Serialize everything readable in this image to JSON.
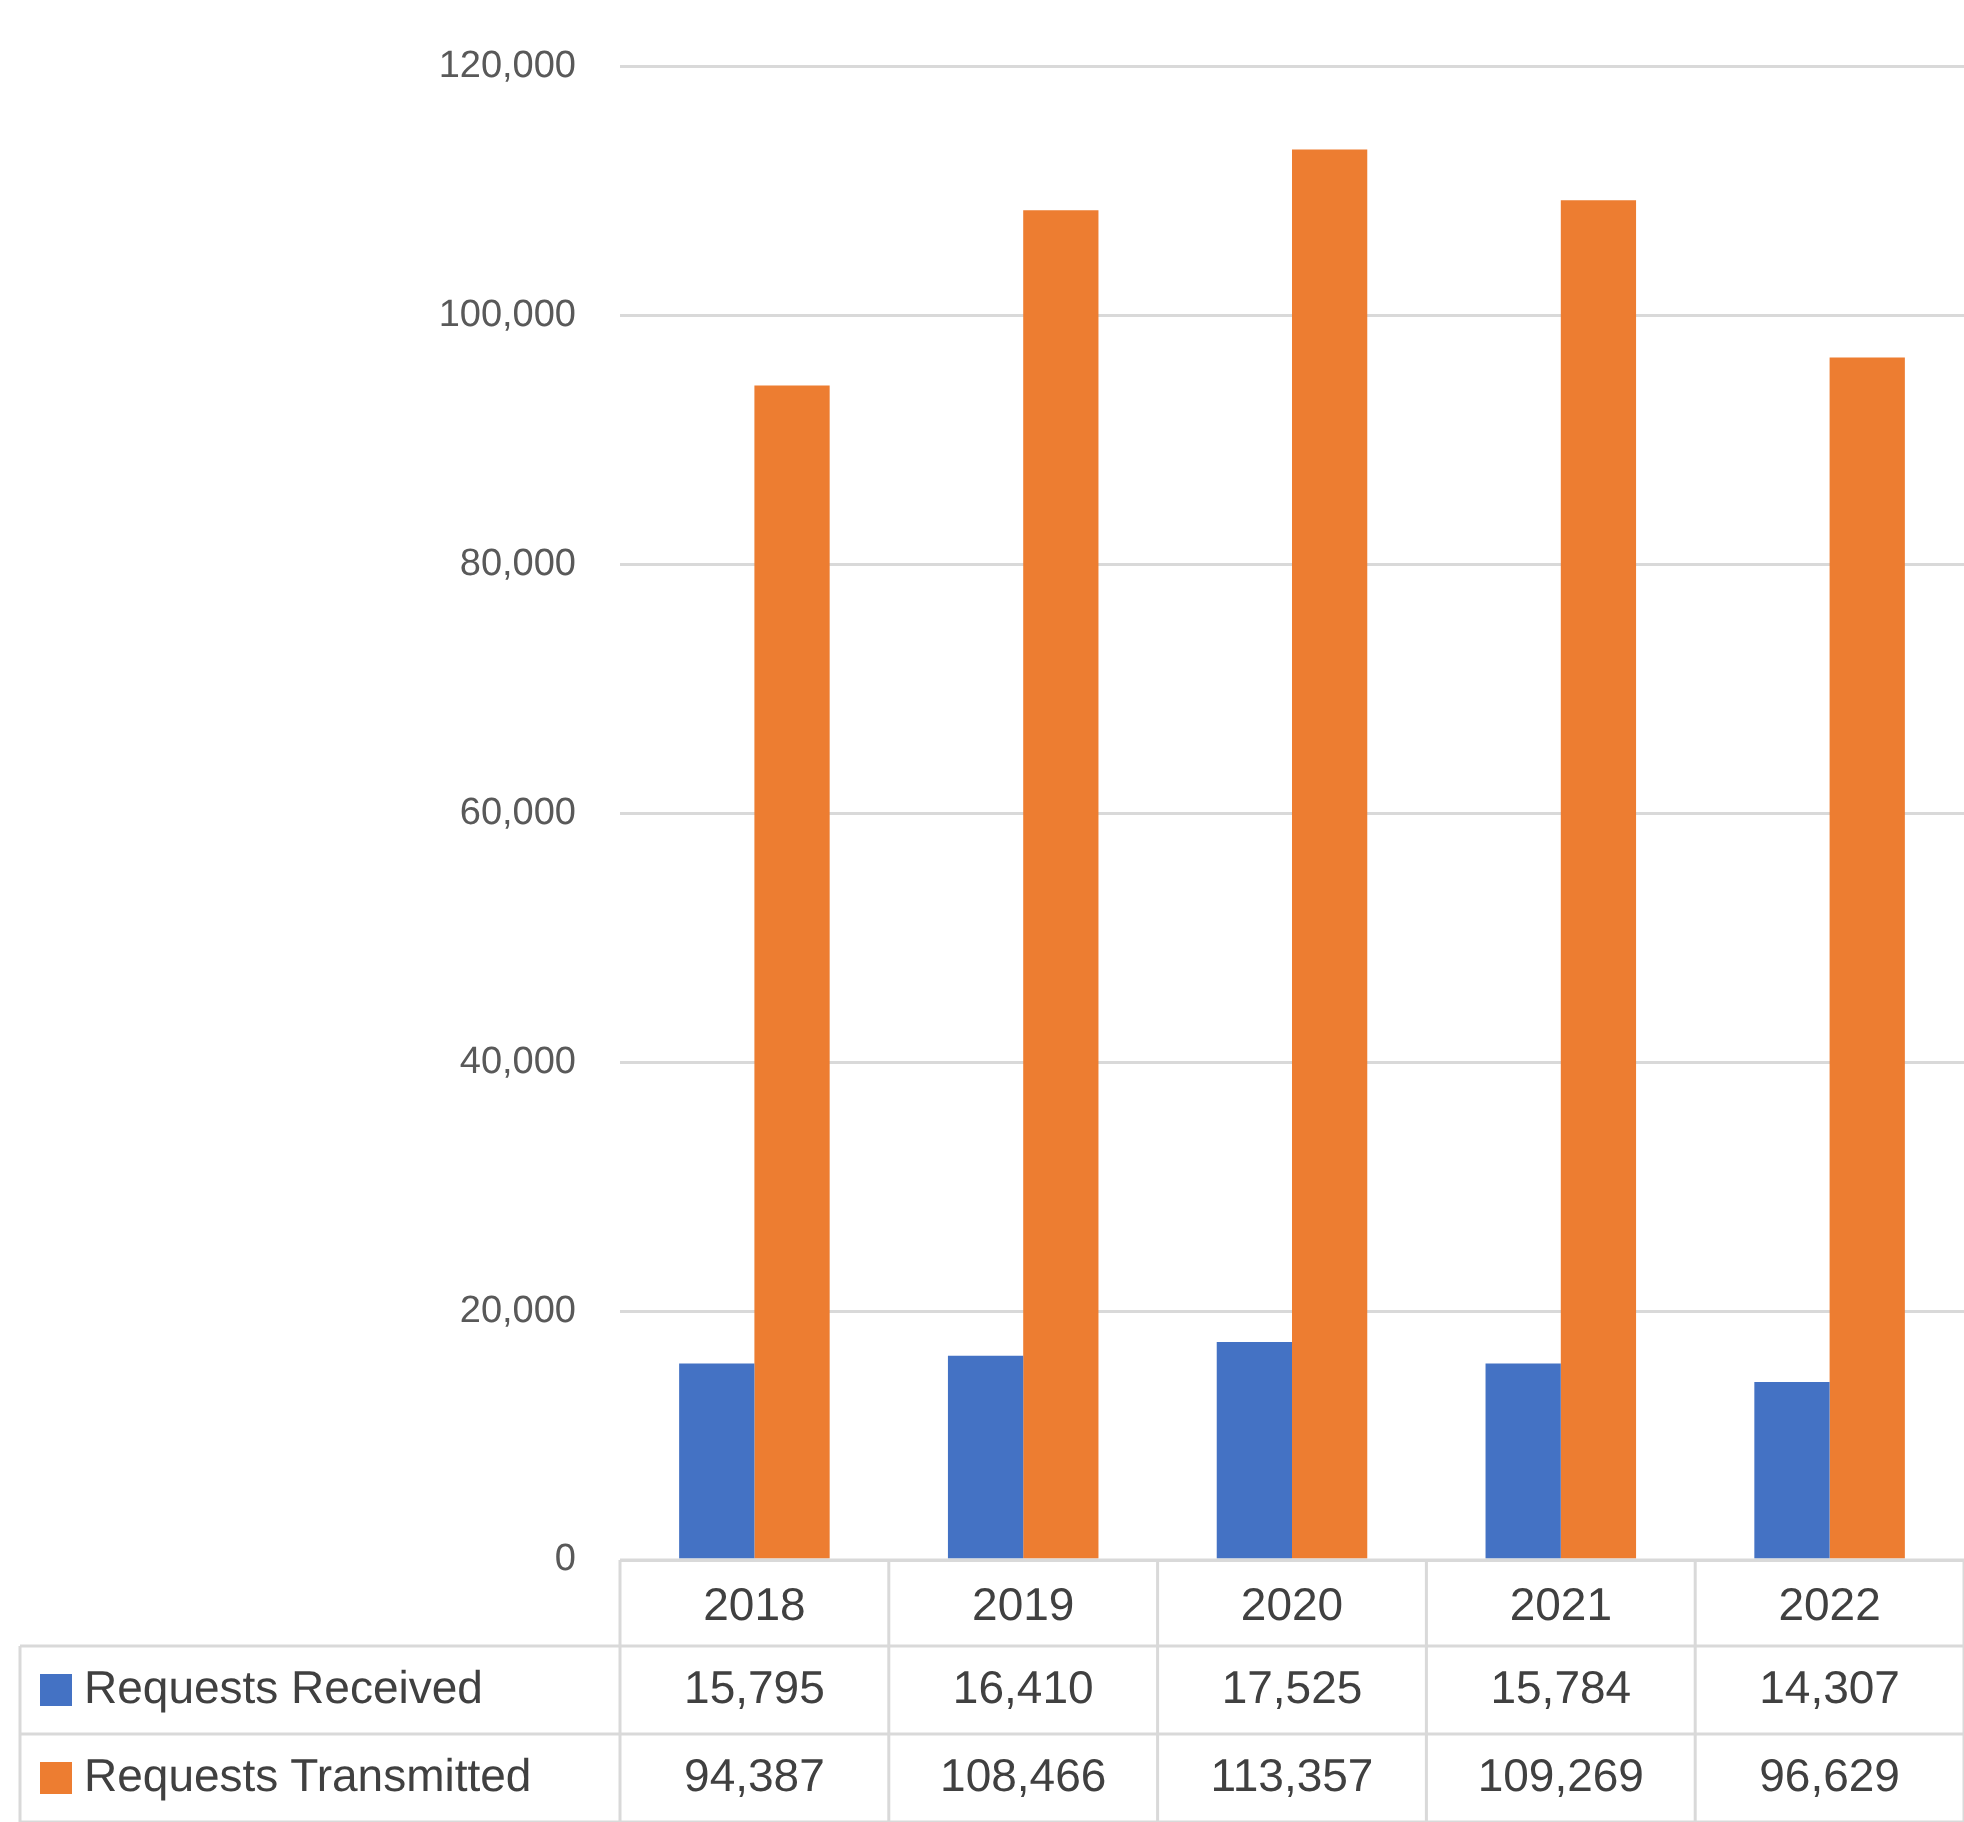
{
  "chart_data": {
    "type": "bar",
    "categories": [
      "2018",
      "2019",
      "2020",
      "2021",
      "2022"
    ],
    "series": [
      {
        "name": "Requests Received",
        "color": "#4472c4",
        "values": [
          15795,
          16410,
          17525,
          15784,
          14307
        ],
        "value_labels": [
          "15,795",
          "16,410",
          "17,525",
          "15,784",
          "14,307"
        ]
      },
      {
        "name": "Requests Transmitted",
        "color": "#ed7d31",
        "values": [
          94387,
          108466,
          113357,
          109269,
          96629
        ],
        "value_labels": [
          "94,387",
          "108,466",
          "113,357",
          "109,269",
          "96,629"
        ]
      }
    ],
    "ylim": [
      0,
      120000
    ],
    "yticks": [
      {
        "value": 0,
        "label": "0"
      },
      {
        "value": 20000,
        "label": "20,000"
      },
      {
        "value": 40000,
        "label": "40,000"
      },
      {
        "value": 60000,
        "label": "60,000"
      },
      {
        "value": 80000,
        "label": "80,000"
      },
      {
        "value": 100000,
        "label": "100,000"
      },
      {
        "value": 120000,
        "label": "120,000"
      }
    ],
    "grid": "y",
    "legend": "bottom"
  }
}
